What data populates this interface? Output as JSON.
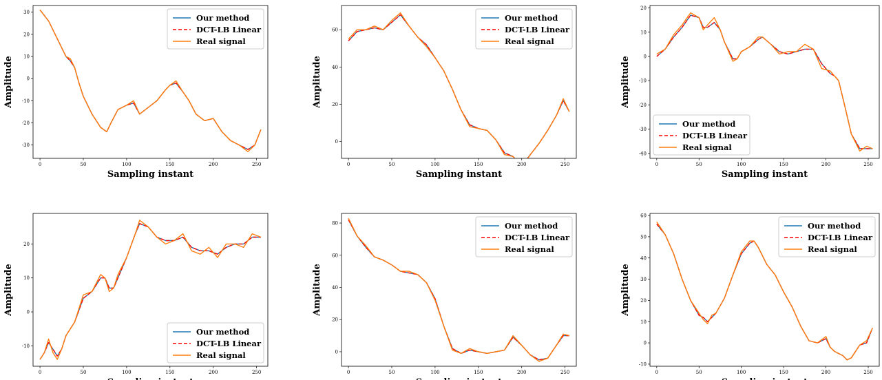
{
  "legend": {
    "entries": [
      {
        "label": "Our method",
        "color": "#1f77b4",
        "dash": "solid"
      },
      {
        "label": "DCT-LB Linear",
        "color": "#ff0000",
        "dash": "dashed"
      },
      {
        "label": "Real signal",
        "color": "#ff7f0e",
        "dash": "solid"
      }
    ]
  },
  "chart_data": [
    {
      "type": "line",
      "xlabel": "Sampling instant",
      "ylabel": "Amplitude",
      "xlim": [
        -8,
        263
      ],
      "ylim": [
        -36,
        33
      ],
      "xticks": [
        0,
        50,
        100,
        150,
        200,
        250
      ],
      "yticks": [
        -30,
        -20,
        -10,
        0,
        10,
        20,
        30
      ],
      "legend_position": "top-right",
      "x": [
        0,
        10,
        20,
        30,
        35,
        40,
        45,
        50,
        60,
        70,
        77,
        82,
        90,
        100,
        108,
        115,
        125,
        135,
        145,
        150,
        157,
        165,
        172,
        180,
        190,
        200,
        210,
        220,
        230,
        240,
        248,
        255
      ],
      "series": [
        {
          "name": "Our method",
          "values": [
            31,
            26,
            18,
            10,
            8,
            5,
            -2,
            -8,
            -16,
            -22,
            -24,
            -20,
            -14,
            -12,
            -11,
            -16,
            -13,
            -10,
            -5,
            -3,
            -2,
            -6,
            -10,
            -16,
            -19,
            -18,
            -24,
            -28,
            -30,
            -32,
            -30,
            -23
          ]
        },
        {
          "name": "DCT-LB Linear",
          "values": [
            31,
            26,
            18,
            10,
            8,
            5,
            -2,
            -8,
            -16,
            -22,
            -24,
            -20,
            -14,
            -12,
            -11,
            -16,
            -13,
            -10,
            -5,
            -3,
            -2,
            -6,
            -10,
            -16,
            -19,
            -18,
            -24,
            -28,
            -30,
            -32,
            -30,
            -23
          ]
        },
        {
          "name": "Real signal",
          "values": [
            31,
            26,
            18,
            10,
            9,
            5,
            -2,
            -8,
            -16,
            -22,
            -24,
            -20,
            -14,
            -12,
            -10,
            -16,
            -13,
            -10,
            -5,
            -3,
            -1,
            -6,
            -10,
            -16,
            -19,
            -18,
            -24,
            -28,
            -30,
            -33,
            -30,
            -23
          ]
        }
      ]
    },
    {
      "type": "line",
      "xlabel": "Sampling instant",
      "ylabel": "Amplitude",
      "xlim": [
        -8,
        263
      ],
      "ylim": [
        -9,
        73
      ],
      "xticks": [
        0,
        50,
        100,
        150,
        200,
        250
      ],
      "yticks": [
        0,
        20,
        40,
        60
      ],
      "legend_position": "top-right",
      "x": [
        0,
        10,
        20,
        30,
        40,
        50,
        60,
        70,
        80,
        90,
        100,
        110,
        120,
        130,
        140,
        150,
        160,
        170,
        180,
        190,
        200,
        210,
        220,
        230,
        240,
        248,
        255
      ],
      "series": [
        {
          "name": "Our method",
          "values": [
            54,
            59,
            60,
            61,
            60,
            64,
            68,
            62,
            56,
            52,
            45,
            38,
            28,
            17,
            9,
            7,
            6,
            1,
            -6,
            -8,
            -13,
            -7,
            -1,
            6,
            14,
            22,
            16
          ]
        },
        {
          "name": "DCT-LB Linear",
          "values": [
            54,
            59,
            60,
            61,
            60,
            64,
            68,
            62,
            56,
            52,
            45,
            38,
            28,
            17,
            9,
            7,
            6,
            1,
            -6,
            -8,
            -13,
            -7,
            -1,
            6,
            14,
            22,
            16
          ]
        },
        {
          "name": "Real signal",
          "values": [
            55,
            60,
            60,
            62,
            60,
            65,
            69,
            62,
            56,
            51,
            45,
            38,
            28,
            17,
            8,
            7,
            6,
            1,
            -7,
            -8,
            -14,
            -7,
            -1,
            6,
            14,
            23,
            16
          ]
        }
      ]
    },
    {
      "type": "line",
      "xlabel": "Sampling instant",
      "ylabel": "Amplitude",
      "xlim": [
        -8,
        263
      ],
      "ylim": [
        -42,
        21
      ],
      "xticks": [
        0,
        50,
        100,
        150,
        200,
        250
      ],
      "yticks": [
        -40,
        -30,
        -20,
        -10,
        0,
        10,
        20
      ],
      "legend_position": "bottom-left",
      "x": [
        0,
        10,
        20,
        30,
        40,
        50,
        55,
        60,
        68,
        75,
        80,
        90,
        95,
        100,
        110,
        120,
        125,
        135,
        145,
        155,
        165,
        175,
        185,
        195,
        205,
        210,
        215,
        222,
        230,
        240,
        248,
        255
      ],
      "series": [
        {
          "name": "Our method",
          "values": [
            0,
            3,
            8,
            12,
            17,
            16,
            12,
            12,
            14,
            11,
            6,
            -1,
            -1,
            2,
            4,
            7,
            8,
            5,
            2,
            1,
            2,
            3,
            3,
            -3,
            -7,
            -8,
            -10,
            -20,
            -32,
            -38,
            -38,
            -38
          ]
        },
        {
          "name": "DCT-LB Linear",
          "values": [
            0,
            3,
            8,
            12,
            17,
            16,
            12,
            12,
            14,
            11,
            6,
            -1,
            -1,
            2,
            4,
            7,
            8,
            5,
            2,
            1,
            2,
            3,
            3,
            -3,
            -7,
            -8,
            -10,
            -20,
            -32,
            -38,
            -38,
            -38
          ]
        },
        {
          "name": "Real signal",
          "values": [
            1,
            3,
            9,
            13,
            18,
            16,
            11,
            13,
            16,
            11,
            6,
            -2,
            -1,
            2,
            4,
            8,
            8,
            5,
            1,
            2,
            2,
            5,
            3,
            -5,
            -6,
            -8,
            -10,
            -20,
            -32,
            -39,
            -37,
            -38
          ]
        }
      ]
    },
    {
      "type": "line",
      "xlabel": "Sampling instant",
      "ylabel": "Amplitude",
      "xlim": [
        -8,
        263
      ],
      "ylim": [
        -16,
        29
      ],
      "xticks": [
        0,
        50,
        100,
        150,
        200,
        250
      ],
      "yticks": [
        -10,
        0,
        10,
        20
      ],
      "legend_position": "bottom-right",
      "x": [
        0,
        5,
        10,
        15,
        20,
        25,
        30,
        40,
        50,
        60,
        70,
        75,
        80,
        85,
        90,
        100,
        110,
        115,
        125,
        135,
        145,
        155,
        165,
        175,
        185,
        195,
        205,
        215,
        225,
        235,
        245,
        255
      ],
      "series": [
        {
          "name": "Our method",
          "values": [
            -14,
            -12,
            -9,
            -11,
            -13,
            -11,
            -7,
            -3,
            4,
            6,
            10,
            10,
            7,
            7,
            10,
            16,
            23,
            26,
            25,
            22,
            21,
            21,
            22,
            19,
            18,
            18,
            17,
            19,
            20,
            20,
            22,
            22
          ]
        },
        {
          "name": "DCT-LB Linear",
          "values": [
            -14,
            -12,
            -9,
            -11,
            -13,
            -11,
            -7,
            -3,
            4,
            6,
            10,
            10,
            7,
            7,
            10,
            16,
            23,
            26,
            25,
            22,
            21,
            21,
            22,
            19,
            18,
            18,
            17,
            19,
            20,
            20,
            22,
            22
          ]
        },
        {
          "name": "Real signal",
          "values": [
            -14,
            -12,
            -8,
            -12,
            -14,
            -11,
            -7,
            -3,
            5,
            6,
            11,
            10,
            6,
            7,
            11,
            16,
            23,
            27,
            25,
            22,
            20,
            21,
            23,
            18,
            17,
            19,
            16,
            20,
            20,
            19,
            23,
            22
          ]
        }
      ]
    },
    {
      "type": "line",
      "xlabel": "Sampling instant",
      "ylabel": "Amplitude",
      "xlim": [
        -8,
        263
      ],
      "ylim": [
        -9,
        86
      ],
      "xticks": [
        0,
        50,
        100,
        150,
        200,
        250
      ],
      "yticks": [
        0,
        20,
        40,
        60,
        80
      ],
      "legend_position": "top-right",
      "x": [
        0,
        10,
        20,
        30,
        40,
        50,
        60,
        70,
        80,
        90,
        100,
        110,
        120,
        130,
        140,
        150,
        160,
        170,
        180,
        190,
        200,
        210,
        220,
        230,
        240,
        248,
        255
      ],
      "series": [
        {
          "name": "Our method",
          "values": [
            82,
            72,
            65,
            59,
            57,
            54,
            50,
            49,
            48,
            43,
            33,
            16,
            2,
            -1,
            1,
            0,
            -1,
            0,
            1,
            9,
            4,
            -2,
            -5,
            -4,
            4,
            10,
            10
          ]
        },
        {
          "name": "DCT-LB Linear",
          "values": [
            82,
            72,
            65,
            59,
            57,
            54,
            50,
            49,
            48,
            43,
            33,
            16,
            2,
            -1,
            1,
            0,
            -1,
            0,
            1,
            9,
            4,
            -2,
            -5,
            -4,
            4,
            10,
            10
          ]
        },
        {
          "name": "Real signal",
          "values": [
            83,
            72,
            66,
            59,
            57,
            54,
            50,
            50,
            48,
            43,
            32,
            16,
            1,
            -1,
            2,
            0,
            -1,
            0,
            1,
            10,
            4,
            -2,
            -6,
            -4,
            4,
            11,
            10
          ]
        }
      ]
    },
    {
      "type": "line",
      "xlabel": "Sampling instant",
      "ylabel": "Amplitude",
      "xlim": [
        -8,
        263
      ],
      "ylim": [
        -11,
        61
      ],
      "xticks": [
        0,
        50,
        100,
        150,
        200,
        250
      ],
      "yticks": [
        -10,
        0,
        10,
        20,
        30,
        40,
        50,
        60
      ],
      "legend_position": "top-right",
      "x": [
        0,
        10,
        20,
        30,
        40,
        50,
        55,
        60,
        65,
        70,
        80,
        90,
        100,
        110,
        115,
        120,
        130,
        140,
        150,
        160,
        170,
        180,
        190,
        200,
        205,
        210,
        220,
        225,
        230,
        240,
        248,
        255
      ],
      "series": [
        {
          "name": "Our method",
          "values": [
            56,
            51,
            42,
            30,
            20,
            13,
            12,
            10,
            12,
            14,
            21,
            32,
            42,
            47,
            48,
            45,
            37,
            32,
            24,
            17,
            8,
            1,
            0,
            2,
            -2,
            -4,
            -6,
            -8,
            -7,
            -1,
            0,
            7
          ]
        },
        {
          "name": "DCT-LB Linear",
          "values": [
            56,
            51,
            42,
            30,
            20,
            13,
            12,
            10,
            12,
            14,
            21,
            32,
            42,
            47,
            48,
            45,
            37,
            32,
            24,
            17,
            8,
            1,
            0,
            2,
            -2,
            -4,
            -6,
            -8,
            -7,
            -1,
            0,
            7
          ]
        },
        {
          "name": "Real signal",
          "values": [
            57,
            51,
            42,
            30,
            20,
            14,
            11,
            9,
            13,
            14,
            21,
            32,
            43,
            48,
            48,
            45,
            37,
            32,
            24,
            17,
            8,
            1,
            0,
            3,
            -2,
            -4,
            -6,
            -8,
            -7,
            -1,
            1,
            7
          ]
        }
      ]
    }
  ]
}
